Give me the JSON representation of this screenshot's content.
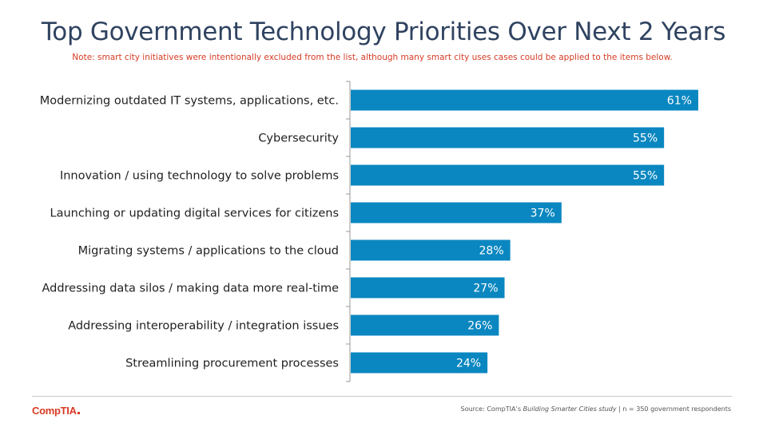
{
  "title": "Top Government Technology Priorities Over Next 2 Years",
  "note": "Note: smart city initiatives were intentionally excluded from the list, although many smart city uses cases could be applied to the items below.",
  "footer": {
    "logo": "CompTIA",
    "source_prefix": "Source:  CompTIA’s ",
    "source_study": "Building Smarter Cities study",
    "source_suffix": "  |  n = 350 government respondents"
  },
  "colors": {
    "bar": "#0a87c0",
    "title": "#2f4360",
    "note": "#d63b25",
    "brand": "#d63b25"
  },
  "chart_data": {
    "type": "bar",
    "orientation": "horizontal",
    "categories": [
      "Modernizing outdated IT systems, applications, etc.",
      "Cybersecurity",
      "Innovation / using technology to solve problems",
      "Launching or updating digital services for citizens",
      "Migrating systems / applications to the cloud",
      "Addressing data silos / making data more real-time",
      "Addressing interoperability / integration issues",
      "Streamlining procurement processes"
    ],
    "values": [
      61,
      55,
      55,
      37,
      28,
      27,
      26,
      24
    ],
    "value_labels": [
      "61%",
      "55%",
      "55%",
      "37%",
      "28%",
      "27%",
      "26%",
      "24%"
    ],
    "unit": "%",
    "xlim": [
      0,
      70
    ],
    "grid": false,
    "legend": "none"
  }
}
